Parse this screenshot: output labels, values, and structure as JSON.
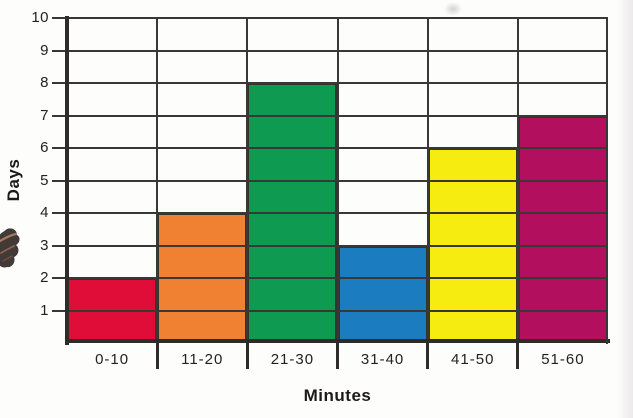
{
  "chart_data": {
    "type": "bar",
    "categories": [
      "0-10",
      "11-20",
      "21-30",
      "31-40",
      "41-50",
      "51-60"
    ],
    "values": [
      2,
      4,
      8,
      3,
      6,
      7
    ],
    "bar_colors": [
      "#e00d38",
      "#f08032",
      "#0e9a51",
      "#1b7dc0",
      "#f7ec0f",
      "#b30f5f"
    ],
    "title": "",
    "xlabel": "Minutes",
    "ylabel": "Days",
    "ylim": [
      0,
      10
    ],
    "yticks": [
      1,
      2,
      3,
      4,
      5,
      6,
      7,
      8,
      9,
      10
    ],
    "grid": "on",
    "grid_color": "#3a3835",
    "legend": "none"
  }
}
